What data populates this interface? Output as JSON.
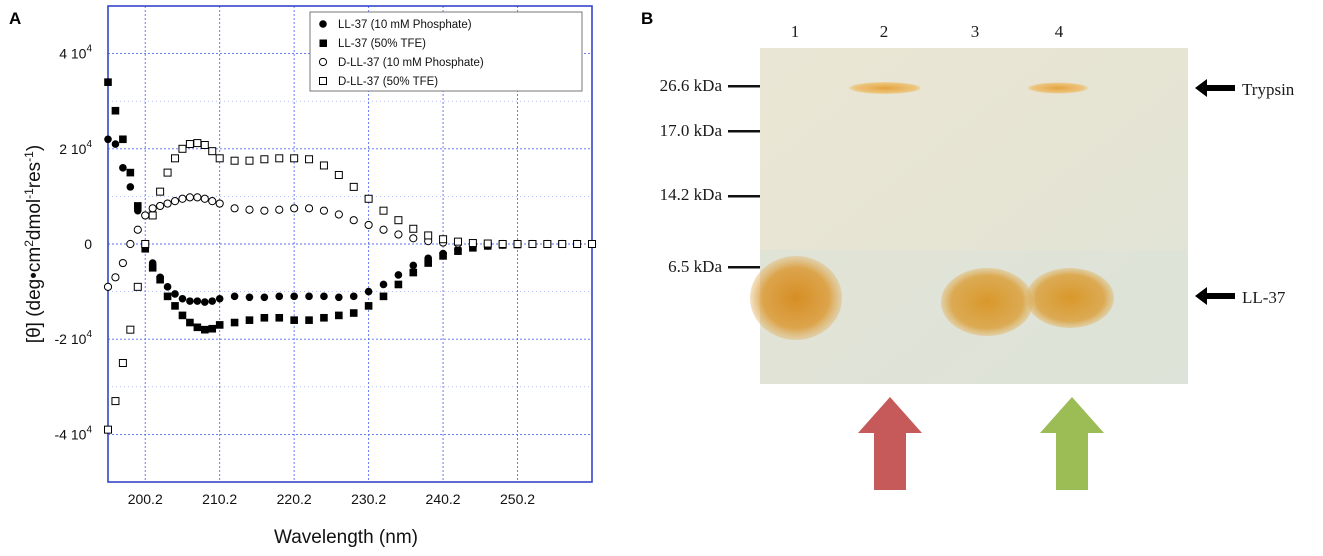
{
  "panel_a": {
    "letter": "A",
    "chart_data": {
      "type": "scatter",
      "xlabel": "Wavelength (nm)",
      "ylabel_parts": [
        "[θ] (deg•cm",
        "2",
        "dmol",
        "-1",
        "res",
        "-1",
        ")"
      ],
      "xlim": [
        195.2,
        260.2
      ],
      "ylim": [
        -5,
        5
      ],
      "y_unit_note": "values in units of 10^4",
      "x_ticks": [
        {
          "value": 200.2,
          "label": "200.2"
        },
        {
          "value": 210.2,
          "label": "210.2"
        },
        {
          "value": 220.2,
          "label": "220.2"
        },
        {
          "value": 230.2,
          "label": "230.2"
        },
        {
          "value": 240.2,
          "label": "240.2"
        },
        {
          "value": 250.2,
          "label": "250.2"
        }
      ],
      "y_ticks": [
        {
          "value": 4,
          "base": "4 10",
          "exp": "4"
        },
        {
          "value": 2,
          "base": "2 10",
          "exp": "4"
        },
        {
          "value": 0,
          "base": "0",
          "exp": ""
        },
        {
          "value": -2,
          "base": "-2 10",
          "exp": "4"
        },
        {
          "value": -4,
          "base": "-4 10",
          "exp": "4"
        }
      ],
      "grid": true,
      "legend_position": "top-right",
      "series": [
        {
          "name": "LL-37 (10 mM Phosphate)",
          "marker": "filled-circle",
          "x": [
            195.2,
            196.2,
            197.2,
            198.2,
            199.2,
            200.2,
            201.2,
            202.2,
            203.2,
            204.2,
            205.2,
            206.2,
            207.2,
            208.2,
            209.2,
            210.2,
            212.2,
            214.2,
            216.2,
            218.2,
            220.2,
            222.2,
            224.2,
            226.2,
            228.2,
            230.2,
            232.2,
            234.2,
            236.2,
            238.2,
            240.2,
            242.2,
            244.2,
            246.2,
            248.2,
            250.2,
            252.2,
            254.2,
            256.2,
            258.2,
            260.2
          ],
          "y": [
            2.2,
            2.1,
            1.6,
            1.2,
            0.7,
            0.0,
            -0.4,
            -0.7,
            -0.9,
            -1.05,
            -1.15,
            -1.2,
            -1.2,
            -1.22,
            -1.2,
            -1.15,
            -1.1,
            -1.12,
            -1.12,
            -1.1,
            -1.1,
            -1.1,
            -1.1,
            -1.12,
            -1.1,
            -1.0,
            -0.85,
            -0.65,
            -0.45,
            -0.3,
            -0.2,
            -0.12,
            -0.07,
            -0.04,
            -0.02,
            -0.01,
            0.0,
            0.0,
            0.0,
            0.0,
            0.0
          ]
        },
        {
          "name": "LL-37 (50% TFE)",
          "marker": "filled-square",
          "x": [
            195.2,
            196.2,
            197.2,
            198.2,
            199.2,
            200.2,
            201.2,
            202.2,
            203.2,
            204.2,
            205.2,
            206.2,
            207.2,
            208.2,
            209.2,
            210.2,
            212.2,
            214.2,
            216.2,
            218.2,
            220.2,
            222.2,
            224.2,
            226.2,
            228.2,
            230.2,
            232.2,
            234.2,
            236.2,
            238.2,
            240.2,
            242.2,
            244.2,
            246.2,
            248.2,
            250.2,
            252.2,
            254.2,
            256.2,
            258.2,
            260.2
          ],
          "y": [
            3.4,
            2.8,
            2.2,
            1.5,
            0.8,
            -0.1,
            -0.5,
            -0.75,
            -1.1,
            -1.3,
            -1.5,
            -1.65,
            -1.75,
            -1.8,
            -1.78,
            -1.7,
            -1.65,
            -1.6,
            -1.55,
            -1.55,
            -1.6,
            -1.6,
            -1.55,
            -1.5,
            -1.45,
            -1.3,
            -1.1,
            -0.85,
            -0.6,
            -0.4,
            -0.25,
            -0.15,
            -0.08,
            -0.04,
            -0.02,
            -0.01,
            0.0,
            0.0,
            0.0,
            0.0,
            0.0
          ]
        },
        {
          "name": "D-LL-37 (10 mM Phosphate)",
          "marker": "open-circle",
          "x": [
            195.2,
            196.2,
            197.2,
            198.2,
            199.2,
            200.2,
            201.2,
            202.2,
            203.2,
            204.2,
            205.2,
            206.2,
            207.2,
            208.2,
            209.2,
            210.2,
            212.2,
            214.2,
            216.2,
            218.2,
            220.2,
            222.2,
            224.2,
            226.2,
            228.2,
            230.2,
            232.2,
            234.2,
            236.2,
            238.2,
            240.2,
            242.2,
            244.2,
            246.2,
            248.2,
            250.2,
            252.2,
            254.2,
            256.2,
            258.2,
            260.2
          ],
          "y": [
            -0.9,
            -0.7,
            -0.4,
            0.0,
            0.3,
            0.6,
            0.75,
            0.8,
            0.85,
            0.9,
            0.95,
            0.98,
            0.98,
            0.95,
            0.9,
            0.85,
            0.75,
            0.72,
            0.7,
            0.72,
            0.75,
            0.75,
            0.7,
            0.62,
            0.5,
            0.4,
            0.3,
            0.2,
            0.12,
            0.06,
            0.03,
            0.01,
            0.0,
            0.0,
            0.0,
            0.0,
            0.0,
            0.0,
            0.0,
            0.0,
            0.0
          ]
        },
        {
          "name": "D-LL-37 (50% TFE)",
          "marker": "open-square",
          "x": [
            195.2,
            196.2,
            197.2,
            198.2,
            199.2,
            200.2,
            201.2,
            202.2,
            203.2,
            204.2,
            205.2,
            206.2,
            207.2,
            208.2,
            209.2,
            210.2,
            212.2,
            214.2,
            216.2,
            218.2,
            220.2,
            222.2,
            224.2,
            226.2,
            228.2,
            230.2,
            232.2,
            234.2,
            236.2,
            238.2,
            240.2,
            242.2,
            244.2,
            246.2,
            248.2,
            250.2,
            252.2,
            254.2,
            256.2,
            258.2,
            260.2
          ],
          "y": [
            -3.9,
            -3.3,
            -2.5,
            -1.8,
            -0.9,
            0.0,
            0.6,
            1.1,
            1.5,
            1.8,
            2.0,
            2.1,
            2.12,
            2.08,
            1.95,
            1.8,
            1.75,
            1.75,
            1.78,
            1.8,
            1.8,
            1.78,
            1.65,
            1.45,
            1.2,
            0.95,
            0.7,
            0.5,
            0.32,
            0.18,
            0.1,
            0.05,
            0.02,
            0.01,
            0.0,
            0.0,
            0.0,
            0.0,
            0.0,
            0.0,
            0.0
          ]
        }
      ]
    }
  },
  "panel_b": {
    "letter": "B",
    "lane_numbers": [
      "1",
      "2",
      "3",
      "4"
    ],
    "markers": [
      {
        "label": "26.6 kDa"
      },
      {
        "label": "17.0 kDa"
      },
      {
        "label": "14.2 kDa"
      },
      {
        "label": "6.5 kDa"
      }
    ],
    "right_labels": [
      {
        "label": "Trypsin"
      },
      {
        "label": "LL-37"
      }
    ],
    "colors": {
      "gel_background": "#e4e2cf",
      "band_ll37": "#d59a28",
      "band_trypsin": "#e7a743",
      "red_arrow": "#c65a5a",
      "green_arrow": "#9cbd55"
    }
  }
}
